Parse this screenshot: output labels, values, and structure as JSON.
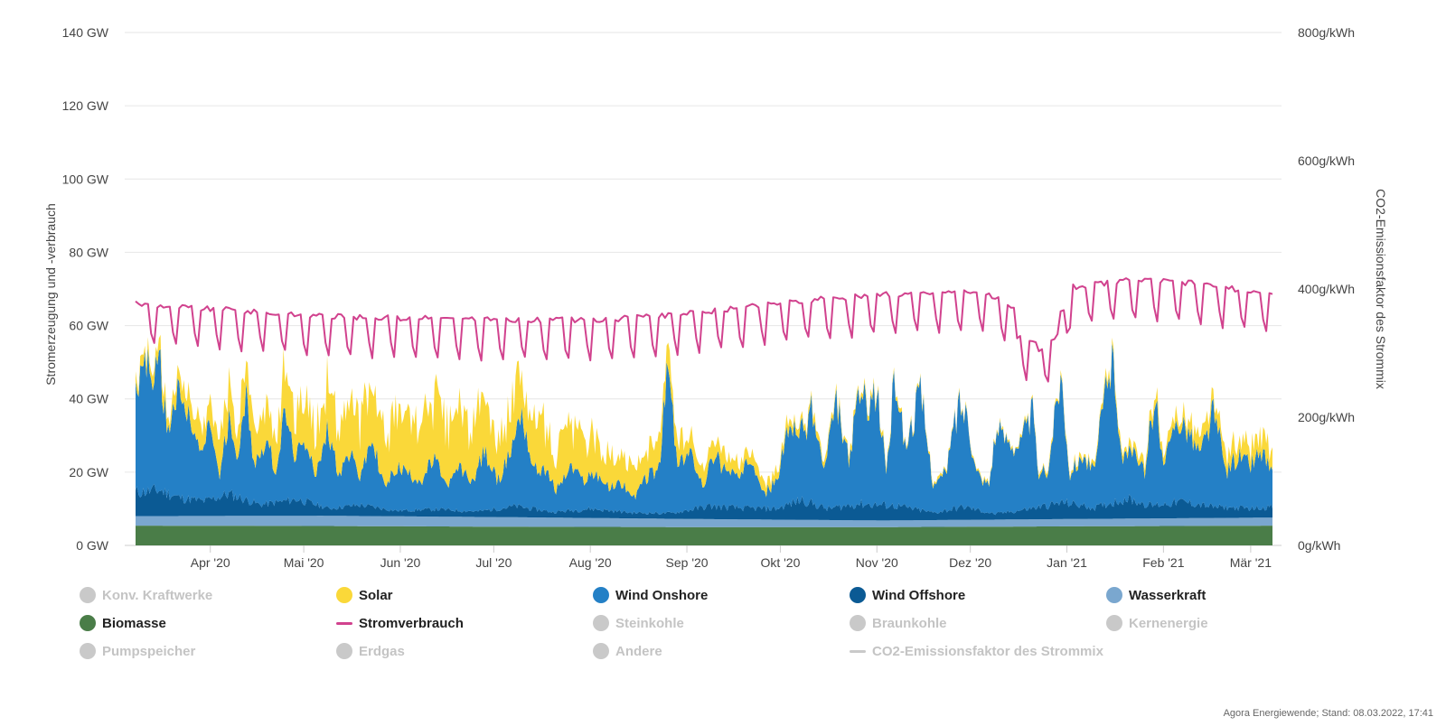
{
  "chart_data": {
    "type": "area",
    "x_start": "2020-03-08",
    "x_end": "2021-03-08",
    "x_tick_labels": [
      "Apr '20",
      "Mai '20",
      "Jun '20",
      "Jul '20",
      "Aug '20",
      "Sep '20",
      "Okt '20",
      "Nov '20",
      "Dez '20",
      "Jan '21",
      "Feb '21",
      "Mär '21"
    ],
    "y_left": {
      "label": "Stromerzeugung und -verbrauch",
      "unit": "GW",
      "ticks": [
        "0 GW",
        "20 GW",
        "40 GW",
        "60 GW",
        "80 GW",
        "100 GW",
        "120 GW",
        "140 GW"
      ],
      "min": 0,
      "max": 140
    },
    "y_right": {
      "label": "CO2-Emissionsfaktor des Strommix",
      "unit": "g/kWh",
      "ticks": [
        "0g/kWh",
        "200g/kWh",
        "400g/kWh",
        "600g/kWh",
        "800g/kWh"
      ],
      "min": 0,
      "max": 800
    },
    "grid": true,
    "stack_order": [
      "Biomasse",
      "Wasserkraft",
      "Wind Offshore",
      "Wind Onshore",
      "Solar"
    ],
    "series": [
      {
        "name": "Biomasse",
        "kind": "area",
        "color": "#4a7d48",
        "anchors": [
          [
            0,
            5.4
          ],
          [
            60,
            5.3
          ],
          [
            120,
            5.1
          ],
          [
            180,
            5.0
          ],
          [
            240,
            5.0
          ],
          [
            300,
            5.2
          ],
          [
            366,
            5.4
          ]
        ]
      },
      {
        "name": "Wasserkraft",
        "kind": "area",
        "color": "#7aa7cf",
        "anchors": [
          [
            0,
            2.6
          ],
          [
            60,
            2.8
          ],
          [
            120,
            2.6
          ],
          [
            180,
            2.2
          ],
          [
            240,
            1.8
          ],
          [
            300,
            2.0
          ],
          [
            366,
            2.2
          ]
        ]
      },
      {
        "name": "Wind Offshore",
        "kind": "area",
        "color": "#0b5a94",
        "anchors": [
          [
            0,
            6.5
          ],
          [
            8,
            7.0
          ],
          [
            14,
            5.0
          ],
          [
            22,
            4.0
          ],
          [
            30,
            6.0
          ],
          [
            40,
            3.0
          ],
          [
            52,
            4.5
          ],
          [
            62,
            2.0
          ],
          [
            72,
            3.0
          ],
          [
            84,
            1.5
          ],
          [
            96,
            2.0
          ],
          [
            110,
            1.5
          ],
          [
            122,
            3.0
          ],
          [
            134,
            1.5
          ],
          [
            146,
            2.5
          ],
          [
            160,
            1.5
          ],
          [
            172,
            1.5
          ],
          [
            184,
            3.5
          ],
          [
            196,
            3.0
          ],
          [
            206,
            3.0
          ],
          [
            214,
            5.5
          ],
          [
            222,
            3.0
          ],
          [
            232,
            4.5
          ],
          [
            244,
            4.0
          ],
          [
            256,
            2.0
          ],
          [
            266,
            3.5
          ],
          [
            276,
            1.5
          ],
          [
            288,
            3.0
          ],
          [
            298,
            4.5
          ],
          [
            308,
            3.0
          ],
          [
            318,
            5.5
          ],
          [
            326,
            3.5
          ],
          [
            336,
            4.5
          ],
          [
            346,
            3.0
          ],
          [
            358,
            2.5
          ],
          [
            366,
            3.0
          ]
        ]
      },
      {
        "name": "Wind Onshore",
        "kind": "area",
        "color": "#2480c6",
        "anchors": [
          [
            0,
            25
          ],
          [
            3,
            38
          ],
          [
            5,
            30
          ],
          [
            8,
            33
          ],
          [
            10,
            18
          ],
          [
            14,
            28
          ],
          [
            17,
            22
          ],
          [
            21,
            12
          ],
          [
            24,
            20
          ],
          [
            27,
            6
          ],
          [
            30,
            20
          ],
          [
            33,
            12
          ],
          [
            36,
            30
          ],
          [
            38,
            10
          ],
          [
            42,
            18
          ],
          [
            45,
            8
          ],
          [
            48,
            24
          ],
          [
            51,
            12
          ],
          [
            55,
            16
          ],
          [
            58,
            8
          ],
          [
            62,
            22
          ],
          [
            65,
            10
          ],
          [
            69,
            14
          ],
          [
            72,
            8
          ],
          [
            76,
            18
          ],
          [
            80,
            6
          ],
          [
            84,
            12
          ],
          [
            88,
            10
          ],
          [
            92,
            8
          ],
          [
            96,
            14
          ],
          [
            100,
            6
          ],
          [
            104,
            12
          ],
          [
            108,
            8
          ],
          [
            112,
            16
          ],
          [
            116,
            8
          ],
          [
            120,
            14
          ],
          [
            124,
            26
          ],
          [
            128,
            10
          ],
          [
            131,
            12
          ],
          [
            135,
            6
          ],
          [
            140,
            12
          ],
          [
            144,
            8
          ],
          [
            148,
            10
          ],
          [
            152,
            6
          ],
          [
            156,
            8
          ],
          [
            160,
            4
          ],
          [
            164,
            10
          ],
          [
            168,
            12
          ],
          [
            171,
            40
          ],
          [
            174,
            12
          ],
          [
            178,
            16
          ],
          [
            182,
            6
          ],
          [
            186,
            14
          ],
          [
            190,
            10
          ],
          [
            194,
            8
          ],
          [
            198,
            14
          ],
          [
            202,
            4
          ],
          [
            206,
            8
          ],
          [
            210,
            22
          ],
          [
            214,
            18
          ],
          [
            217,
            26
          ],
          [
            221,
            10
          ],
          [
            225,
            28
          ],
          [
            229,
            12
          ],
          [
            232,
            30
          ],
          [
            235,
            28
          ],
          [
            238,
            30
          ],
          [
            241,
            10
          ],
          [
            244,
            36
          ],
          [
            247,
            16
          ],
          [
            252,
            32
          ],
          [
            256,
            8
          ],
          [
            260,
            10
          ],
          [
            264,
            28
          ],
          [
            267,
            26
          ],
          [
            270,
            10
          ],
          [
            274,
            8
          ],
          [
            276,
            22
          ],
          [
            280,
            20
          ],
          [
            284,
            18
          ],
          [
            288,
            26
          ],
          [
            290,
            8
          ],
          [
            293,
            10
          ],
          [
            297,
            36
          ],
          [
            300,
            8
          ],
          [
            304,
            14
          ],
          [
            308,
            10
          ],
          [
            312,
            36
          ],
          [
            314,
            38
          ],
          [
            317,
            10
          ],
          [
            320,
            16
          ],
          [
            324,
            8
          ],
          [
            327,
            30
          ],
          [
            330,
            10
          ],
          [
            334,
            22
          ],
          [
            338,
            20
          ],
          [
            342,
            14
          ],
          [
            346,
            26
          ],
          [
            350,
            10
          ],
          [
            354,
            14
          ],
          [
            358,
            12
          ],
          [
            362,
            16
          ],
          [
            364,
            10
          ],
          [
            366,
            8
          ]
        ]
      },
      {
        "name": "Solar",
        "kind": "area",
        "color": "#fad839",
        "anchors": [
          [
            0,
            2
          ],
          [
            14,
            4
          ],
          [
            28,
            8
          ],
          [
            42,
            10
          ],
          [
            52,
            12
          ],
          [
            60,
            12
          ],
          [
            72,
            14
          ],
          [
            84,
            14
          ],
          [
            96,
            16
          ],
          [
            108,
            14
          ],
          [
            120,
            12
          ],
          [
            132,
            12
          ],
          [
            144,
            10
          ],
          [
            156,
            8
          ],
          [
            168,
            6
          ],
          [
            180,
            5
          ],
          [
            190,
            4
          ],
          [
            200,
            3
          ],
          [
            212,
            2
          ],
          [
            224,
            1.5
          ],
          [
            236,
            1
          ],
          [
            248,
            0.8
          ],
          [
            260,
            0.5
          ],
          [
            272,
            0.5
          ],
          [
            284,
            0.6
          ],
          [
            296,
            0.8
          ],
          [
            308,
            1.2
          ],
          [
            320,
            1.8
          ],
          [
            332,
            2.5
          ],
          [
            344,
            3.5
          ],
          [
            356,
            4.5
          ],
          [
            366,
            5
          ]
        ]
      },
      {
        "name": "Stromverbrauch",
        "kind": "line",
        "color": "#d1428e",
        "unit": "GW",
        "anchors": [
          [
            0,
            63.5
          ],
          [
            60,
            60
          ],
          [
            120,
            59
          ],
          [
            150,
            59
          ],
          [
            180,
            61
          ],
          [
            210,
            64
          ],
          [
            240,
            66
          ],
          [
            270,
            67
          ],
          [
            290,
            60
          ],
          [
            300,
            68
          ],
          [
            320,
            70
          ],
          [
            340,
            69
          ],
          [
            366,
            66
          ]
        ],
        "holiday_dips": [
          [
            283,
            290,
            -8
          ],
          [
            290,
            297,
            -10
          ],
          [
            297,
            300,
            -4
          ]
        ]
      }
    ]
  },
  "legend": [
    {
      "label": "Konv. Kraftwerke",
      "color": "#c9c9c9",
      "marker": "dot",
      "active": false
    },
    {
      "label": "Solar",
      "color": "#fad839",
      "marker": "dot",
      "active": true
    },
    {
      "label": "Wind Onshore",
      "color": "#2480c6",
      "marker": "dot",
      "active": true
    },
    {
      "label": "Wind Offshore",
      "color": "#0b5a94",
      "marker": "dot",
      "active": true
    },
    {
      "label": "Wasserkraft",
      "color": "#7aa7cf",
      "marker": "dot",
      "active": true
    },
    {
      "label": "Biomasse",
      "color": "#4a7d48",
      "marker": "dot",
      "active": true
    },
    {
      "label": "Stromverbrauch",
      "color": "#d1428e",
      "marker": "line",
      "active": true
    },
    {
      "label": "Steinkohle",
      "color": "#c9c9c9",
      "marker": "dot",
      "active": false
    },
    {
      "label": "Braunkohle",
      "color": "#c9c9c9",
      "marker": "dot",
      "active": false
    },
    {
      "label": "Kernenergie",
      "color": "#c9c9c9",
      "marker": "dot",
      "active": false
    },
    {
      "label": "Pumpspeicher",
      "color": "#c9c9c9",
      "marker": "dot",
      "active": false
    },
    {
      "label": "Erdgas",
      "color": "#c9c9c9",
      "marker": "dot",
      "active": false
    },
    {
      "label": "Andere",
      "color": "#c9c9c9",
      "marker": "dot",
      "active": false
    },
    {
      "label": "CO2-Emissionsfaktor des Strommix",
      "color": "#c9c9c9",
      "marker": "line",
      "active": false
    }
  ],
  "credits": "Agora Energiewende; Stand: 08.03.2022, 17:41"
}
